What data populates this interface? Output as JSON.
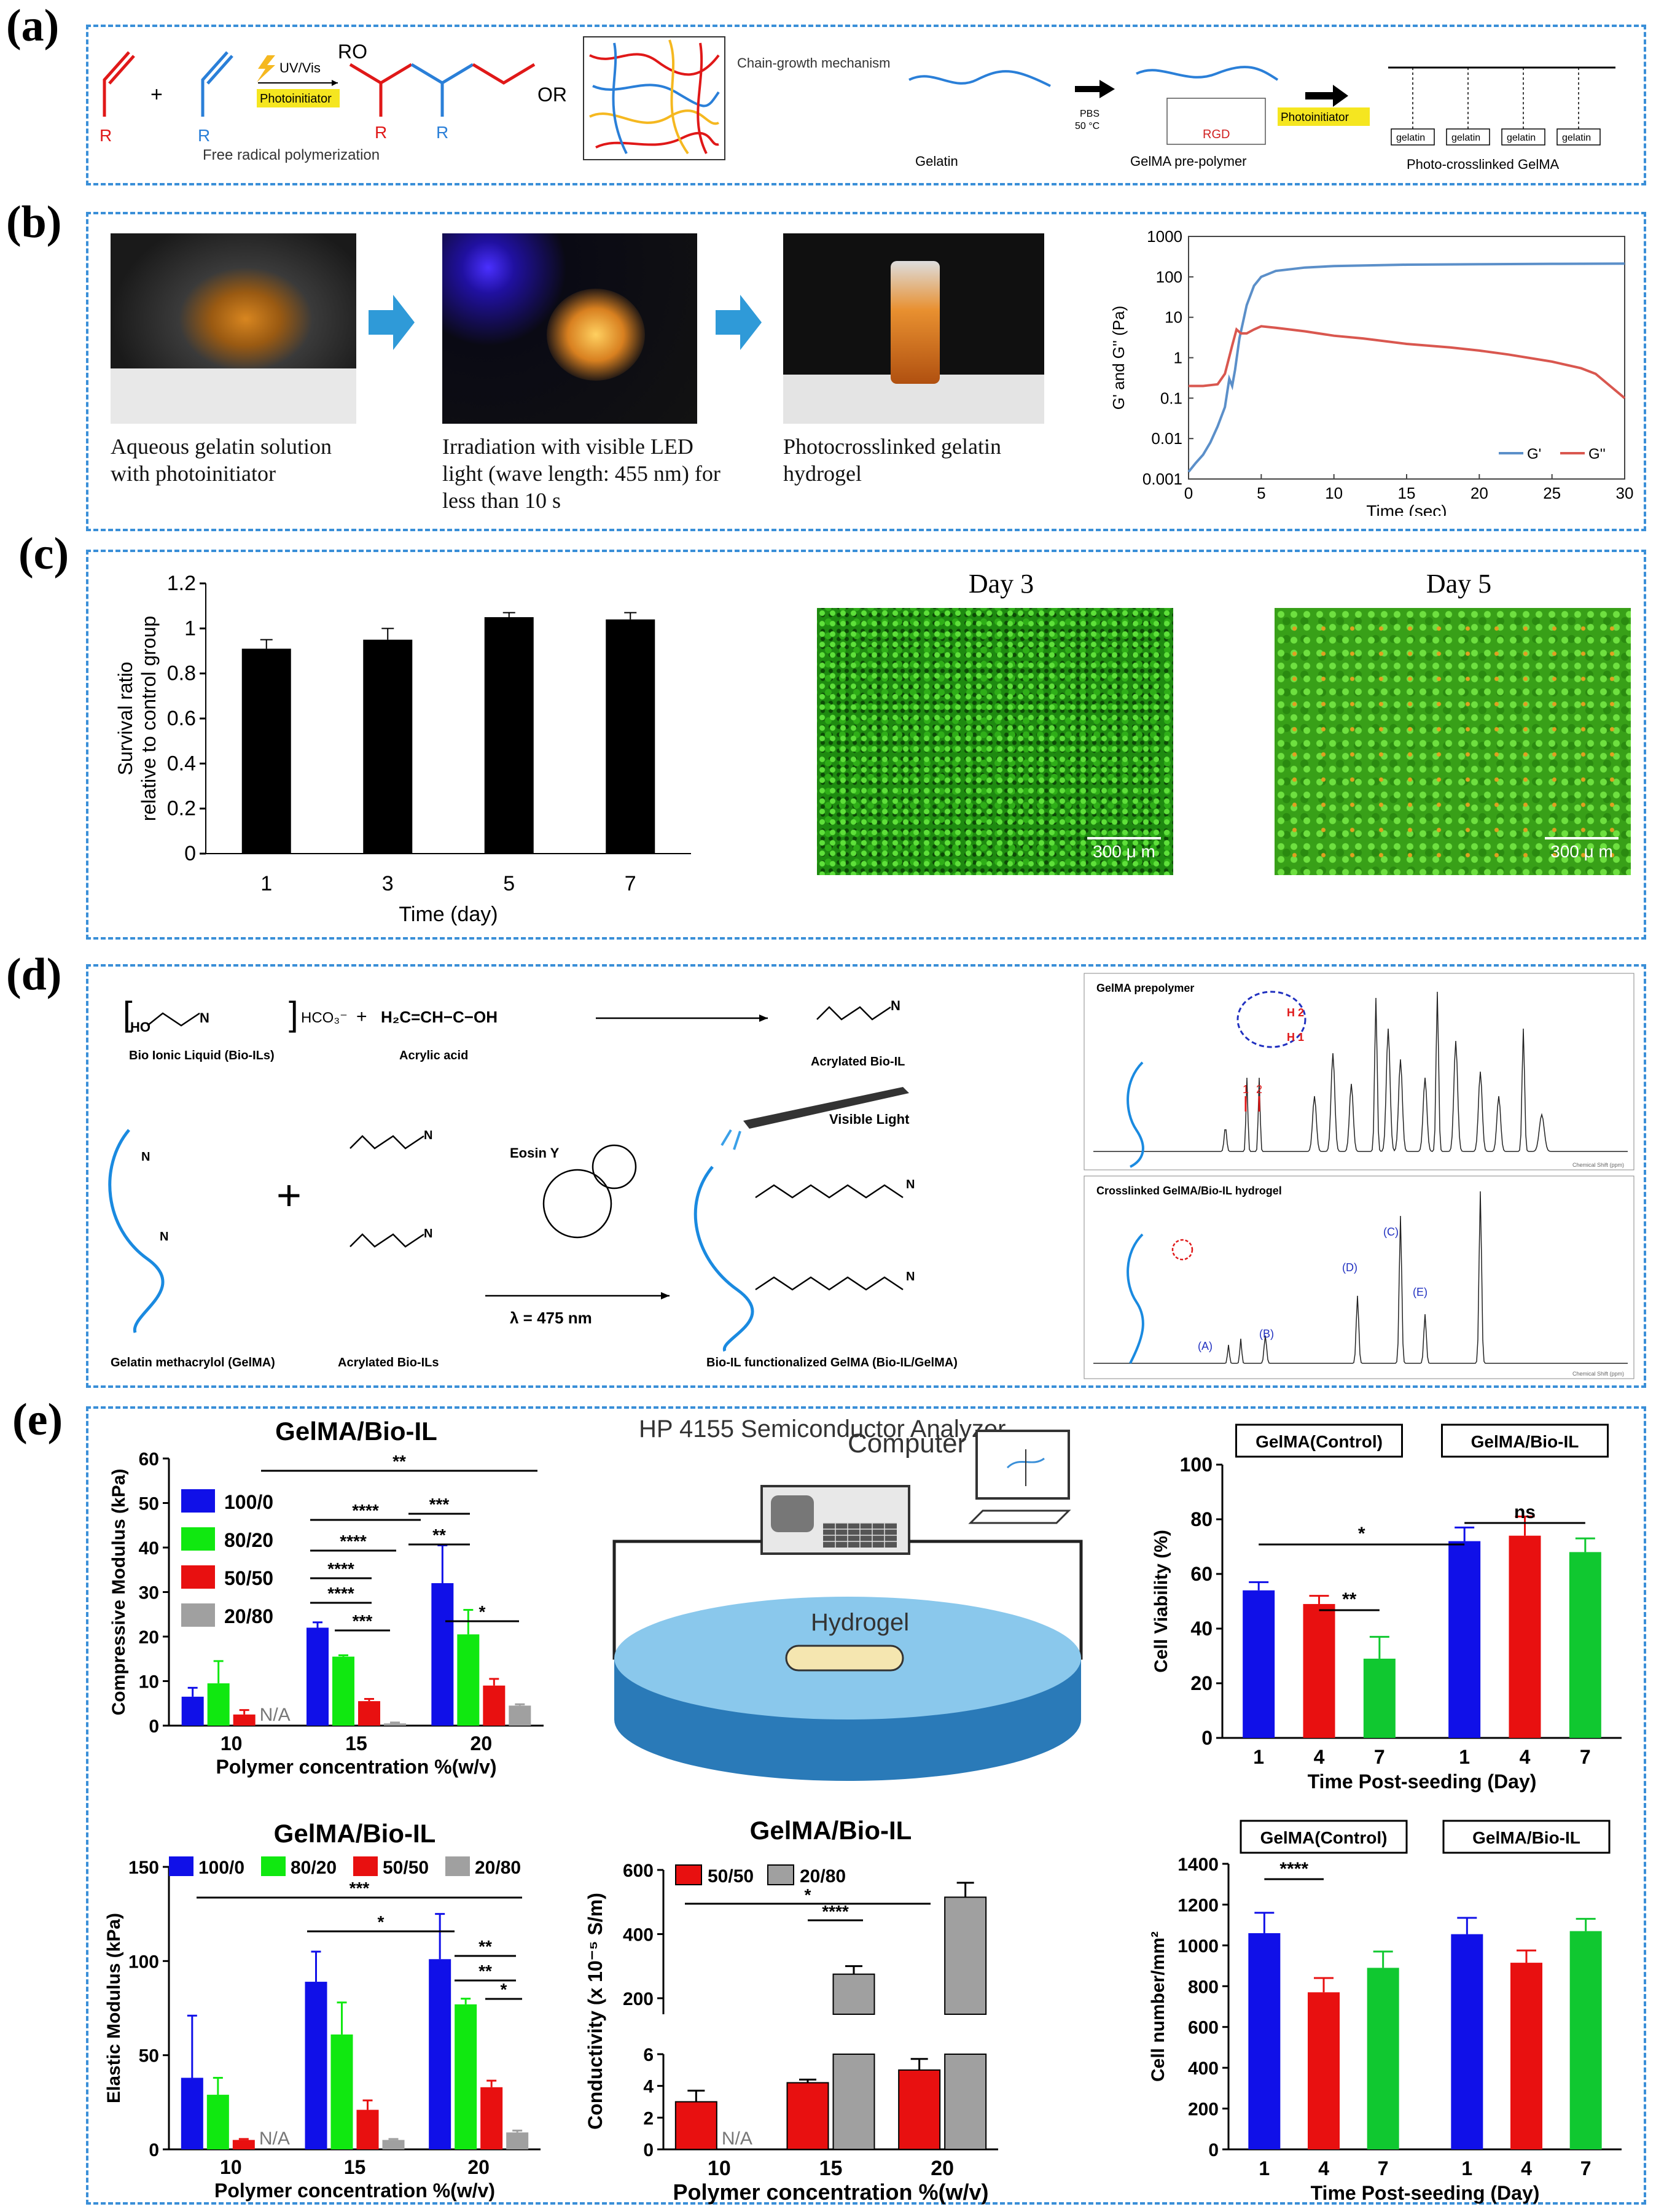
{
  "panels": {
    "a": {
      "letter": "(a)",
      "scheme_left": {
        "plus": "+",
        "R1": "R",
        "R2": "R",
        "arrow_label": "UV/Vis",
        "photoinitiator": "Photoinitiator",
        "ro": "RO",
        "or": "OR",
        "R3": "R",
        "R4": "R",
        "caption": "Free radical polymerization",
        "mechanism": "Chain-growth mechanism"
      },
      "scheme_right": {
        "gelatin": "Gelatin",
        "pbs": "PBS",
        "temp": "50 °C",
        "rgd": "RGD",
        "prepolymer": "GelMA pre-polymer",
        "photoinitiator": "Photoinitiator",
        "crosslinked": "Photo-crosslinked GelMA",
        "units": [
          "gelatin",
          "gelatin",
          "gelatin",
          "gelatin"
        ]
      }
    },
    "b": {
      "letter": "(b)",
      "captions": [
        "Aqueous gelatin solution with photoinitiator",
        "Irradiation with visible LED light (wave length: 455 nm) for less than 10 s",
        "Photocrosslinked gelatin hydrogel"
      ]
    },
    "c": {
      "letter": "(c)",
      "day3": "Day 3",
      "day5": "Day 5",
      "scale": "300 μ m"
    },
    "d": {
      "letter": "(d)",
      "bio_il": "Bio Ionic Liquid (Bio-ILs)",
      "acrylic": "Acrylic acid",
      "acrylated": "Acrylated Bio-IL",
      "visible": "Visible Light",
      "eosin": "Eosin Y",
      "lambda": "λ = 475 nm",
      "gelma": "Gelatin methacrylol (GelMA)",
      "acrylated_ils": "Acrylated Bio-ILs",
      "product": "Bio-IL functionalized GelMA (Bio-IL/GelMA)",
      "hco3": "HCO₃⁻",
      "formula": "H₂C=CH−C−OH",
      "nmr_top": "GelMA prepolymer",
      "nmr_bottom": "Crosslinked GelMA/Bio-IL hydrogel",
      "h2": "H 2",
      "h1": "H 1",
      "peaks_top": [
        "1",
        "2"
      ],
      "peaks_bottom": [
        "(A)",
        "(B)",
        "(C)",
        "(D)",
        "(E)"
      ],
      "nmr_axis": "Chemical Shift (ppm)"
    },
    "e": {
      "letter": "(e)",
      "circuit": {
        "analyzer": "HP 4155 Semiconductor Analyzer",
        "computer": "Computer",
        "hydrogel": "Hydrogel"
      },
      "na": "N/A"
    }
  },
  "chart_data": [
    {
      "id": "b-rheology",
      "type": "line",
      "xlabel": "Time (sec)",
      "ylabel": "G' and G'' (Pa)",
      "xlim": [
        0,
        30
      ],
      "ylim": [
        0.001,
        1000
      ],
      "yscale": "log",
      "xticks": [
        "0",
        "5",
        "10",
        "15",
        "20",
        "25",
        "30"
      ],
      "yticks": [
        "0.001",
        "0.01",
        "0.1",
        "1",
        "10",
        "100",
        "1000"
      ],
      "legend": "bottom-right",
      "series": [
        {
          "name": "G'",
          "color": "#5b8fc9",
          "x": [
            0,
            0.5,
            1,
            1.5,
            2,
            2.5,
            2.8,
            3,
            3.2,
            3.5,
            4,
            4.5,
            5,
            6,
            8,
            10,
            15,
            20,
            25,
            30
          ],
          "y": [
            0.0015,
            0.0025,
            0.004,
            0.008,
            0.02,
            0.06,
            0.3,
            0.2,
            0.5,
            3,
            20,
            60,
            100,
            140,
            170,
            185,
            200,
            205,
            210,
            212
          ]
        },
        {
          "name": "G''",
          "color": "#d9574f",
          "x": [
            0,
            1,
            2,
            2.5,
            3,
            3.3,
            3.6,
            4,
            4.5,
            5,
            6,
            8,
            10,
            12,
            15,
            18,
            20,
            22,
            25,
            27,
            28,
            29,
            30
          ],
          "y": [
            0.2,
            0.2,
            0.22,
            0.4,
            2,
            5,
            4,
            4,
            5,
            6,
            5.5,
            4.5,
            3.5,
            3,
            2.2,
            1.8,
            1.5,
            1.2,
            0.8,
            0.55,
            0.4,
            0.2,
            0.1
          ]
        }
      ]
    },
    {
      "id": "c-survival",
      "type": "bar",
      "xlabel": "Time (day)",
      "ylabel": "Survival ratio relative to control group",
      "categories": [
        "1",
        "3",
        "5",
        "7"
      ],
      "values": [
        0.91,
        0.95,
        1.05,
        1.04
      ],
      "errors": [
        0.04,
        0.05,
        0.02,
        0.03
      ],
      "ylim": [
        0,
        1.2
      ],
      "yticks": [
        "0",
        "0.2",
        "0.4",
        "0.6",
        "0.8",
        "1",
        "1.2"
      ],
      "color": "#000000"
    },
    {
      "id": "e-compressive",
      "type": "bar",
      "title": "GelMA/Bio-IL",
      "xlabel": "Polymer concentration %(w/v)",
      "ylabel": "Compressive Modulus (kPa)",
      "categories": [
        "10",
        "15",
        "20"
      ],
      "ylim": [
        0,
        60
      ],
      "yticks": [
        "0",
        "10",
        "20",
        "30",
        "40",
        "50",
        "60"
      ],
      "legend": "top-left",
      "series": [
        {
          "name": "100/0",
          "color": "#1010e8",
          "values": [
            6.5,
            22,
            32
          ],
          "errors": [
            2,
            1.2,
            8.5
          ]
        },
        {
          "name": "80/20",
          "color": "#10e810",
          "values": [
            9.5,
            15.5,
            20.5
          ],
          "errors": [
            5,
            0.3,
            5.5
          ]
        },
        {
          "name": "50/50",
          "color": "#e81010",
          "values": [
            2.5,
            5.5,
            9
          ],
          "errors": [
            1,
            0.5,
            1.5
          ]
        },
        {
          "name": "20/80",
          "color": "#a0a0a0",
          "values": [
            null,
            0.5,
            4.5
          ],
          "errors": [
            0,
            0.2,
            0.3
          ]
        }
      ],
      "significance": [
        "**",
        "****",
        "****",
        "****",
        "****",
        "***",
        "***",
        "**",
        "*"
      ]
    },
    {
      "id": "e-elastic",
      "type": "bar",
      "title": "GelMA/Bio-IL",
      "xlabel": "Polymer concentration %(w/v)",
      "ylabel": "Elastic Modulus (kPa)",
      "categories": [
        "10",
        "15",
        "20"
      ],
      "ylim": [
        0,
        150
      ],
      "yticks": [
        "0",
        "50",
        "100",
        "150"
      ],
      "legend": "top",
      "series": [
        {
          "name": "100/0",
          "color": "#1010e8",
          "values": [
            38,
            89,
            101
          ],
          "errors": [
            33,
            16,
            24
          ]
        },
        {
          "name": "80/20",
          "color": "#10e810",
          "values": [
            29,
            61,
            77
          ],
          "errors": [
            9,
            17,
            3
          ]
        },
        {
          "name": "50/50",
          "color": "#e81010",
          "values": [
            5,
            21,
            33
          ],
          "errors": [
            0.5,
            5,
            3.5
          ]
        },
        {
          "name": "20/80",
          "color": "#a0a0a0",
          "values": [
            null,
            5,
            9
          ],
          "errors": [
            0,
            0.5,
            1
          ]
        }
      ],
      "significance": [
        "***",
        "*",
        "**",
        "**",
        "*"
      ]
    },
    {
      "id": "e-conductivity",
      "type": "bar",
      "title": "GelMA/Bio-IL",
      "xlabel": "Polymer concentration %(w/v)",
      "ylabel": "Conductivity (x 10⁻⁵ S/m)",
      "categories": [
        "10",
        "15",
        "20"
      ],
      "axis_break": true,
      "lower_yticks": [
        "0",
        "2",
        "4",
        "6"
      ],
      "upper_yticks": [
        "200",
        "400",
        "600"
      ],
      "legend": "top-left",
      "series": [
        {
          "name": "50/50",
          "color": "#e81010",
          "values": [
            3.0,
            4.2,
            5.0
          ],
          "errors": [
            0.7,
            0.2,
            0.7
          ]
        },
        {
          "name": "20/80",
          "color": "#a0a0a0",
          "values": [
            null,
            275,
            515
          ],
          "errors": [
            0,
            25,
            45
          ]
        }
      ],
      "significance": [
        "*",
        "****"
      ]
    },
    {
      "id": "e-viability",
      "type": "bar",
      "xlabel": "Time Post-seeding (Day)",
      "ylabel": "Cell Viability (%)",
      "groups": [
        "GelMA(Control)",
        "GelMA/Bio-IL"
      ],
      "categories": [
        "1",
        "4",
        "7",
        "1",
        "4",
        "7"
      ],
      "colors": [
        "#1010e8",
        "#e81010",
        "#10c830",
        "#1010e8",
        "#e81010",
        "#10c830"
      ],
      "values": [
        54,
        49,
        29,
        72,
        74,
        68
      ],
      "errors": [
        3,
        3,
        8,
        5,
        7,
        5
      ],
      "ylim": [
        0,
        100
      ],
      "yticks": [
        "0",
        "20",
        "40",
        "60",
        "80",
        "100"
      ],
      "significance": [
        "*",
        "**",
        "ns"
      ]
    },
    {
      "id": "e-cellnumber",
      "type": "bar",
      "xlabel": "Time Post-seeding (Day)",
      "ylabel": "Cell number/mm²",
      "groups": [
        "GelMA(Control)",
        "GelMA/Bio-IL"
      ],
      "categories": [
        "1",
        "4",
        "7",
        "1",
        "4",
        "7"
      ],
      "colors": [
        "#1010e8",
        "#e81010",
        "#10c830",
        "#1010e8",
        "#e81010",
        "#10c830"
      ],
      "values": [
        1060,
        770,
        890,
        1055,
        915,
        1070
      ],
      "errors": [
        100,
        70,
        80,
        80,
        60,
        60
      ],
      "ylim": [
        0,
        1400
      ],
      "yticks": [
        "0",
        "200",
        "400",
        "600",
        "800",
        "1000",
        "1200",
        "1400"
      ],
      "significance": [
        "****"
      ]
    }
  ]
}
